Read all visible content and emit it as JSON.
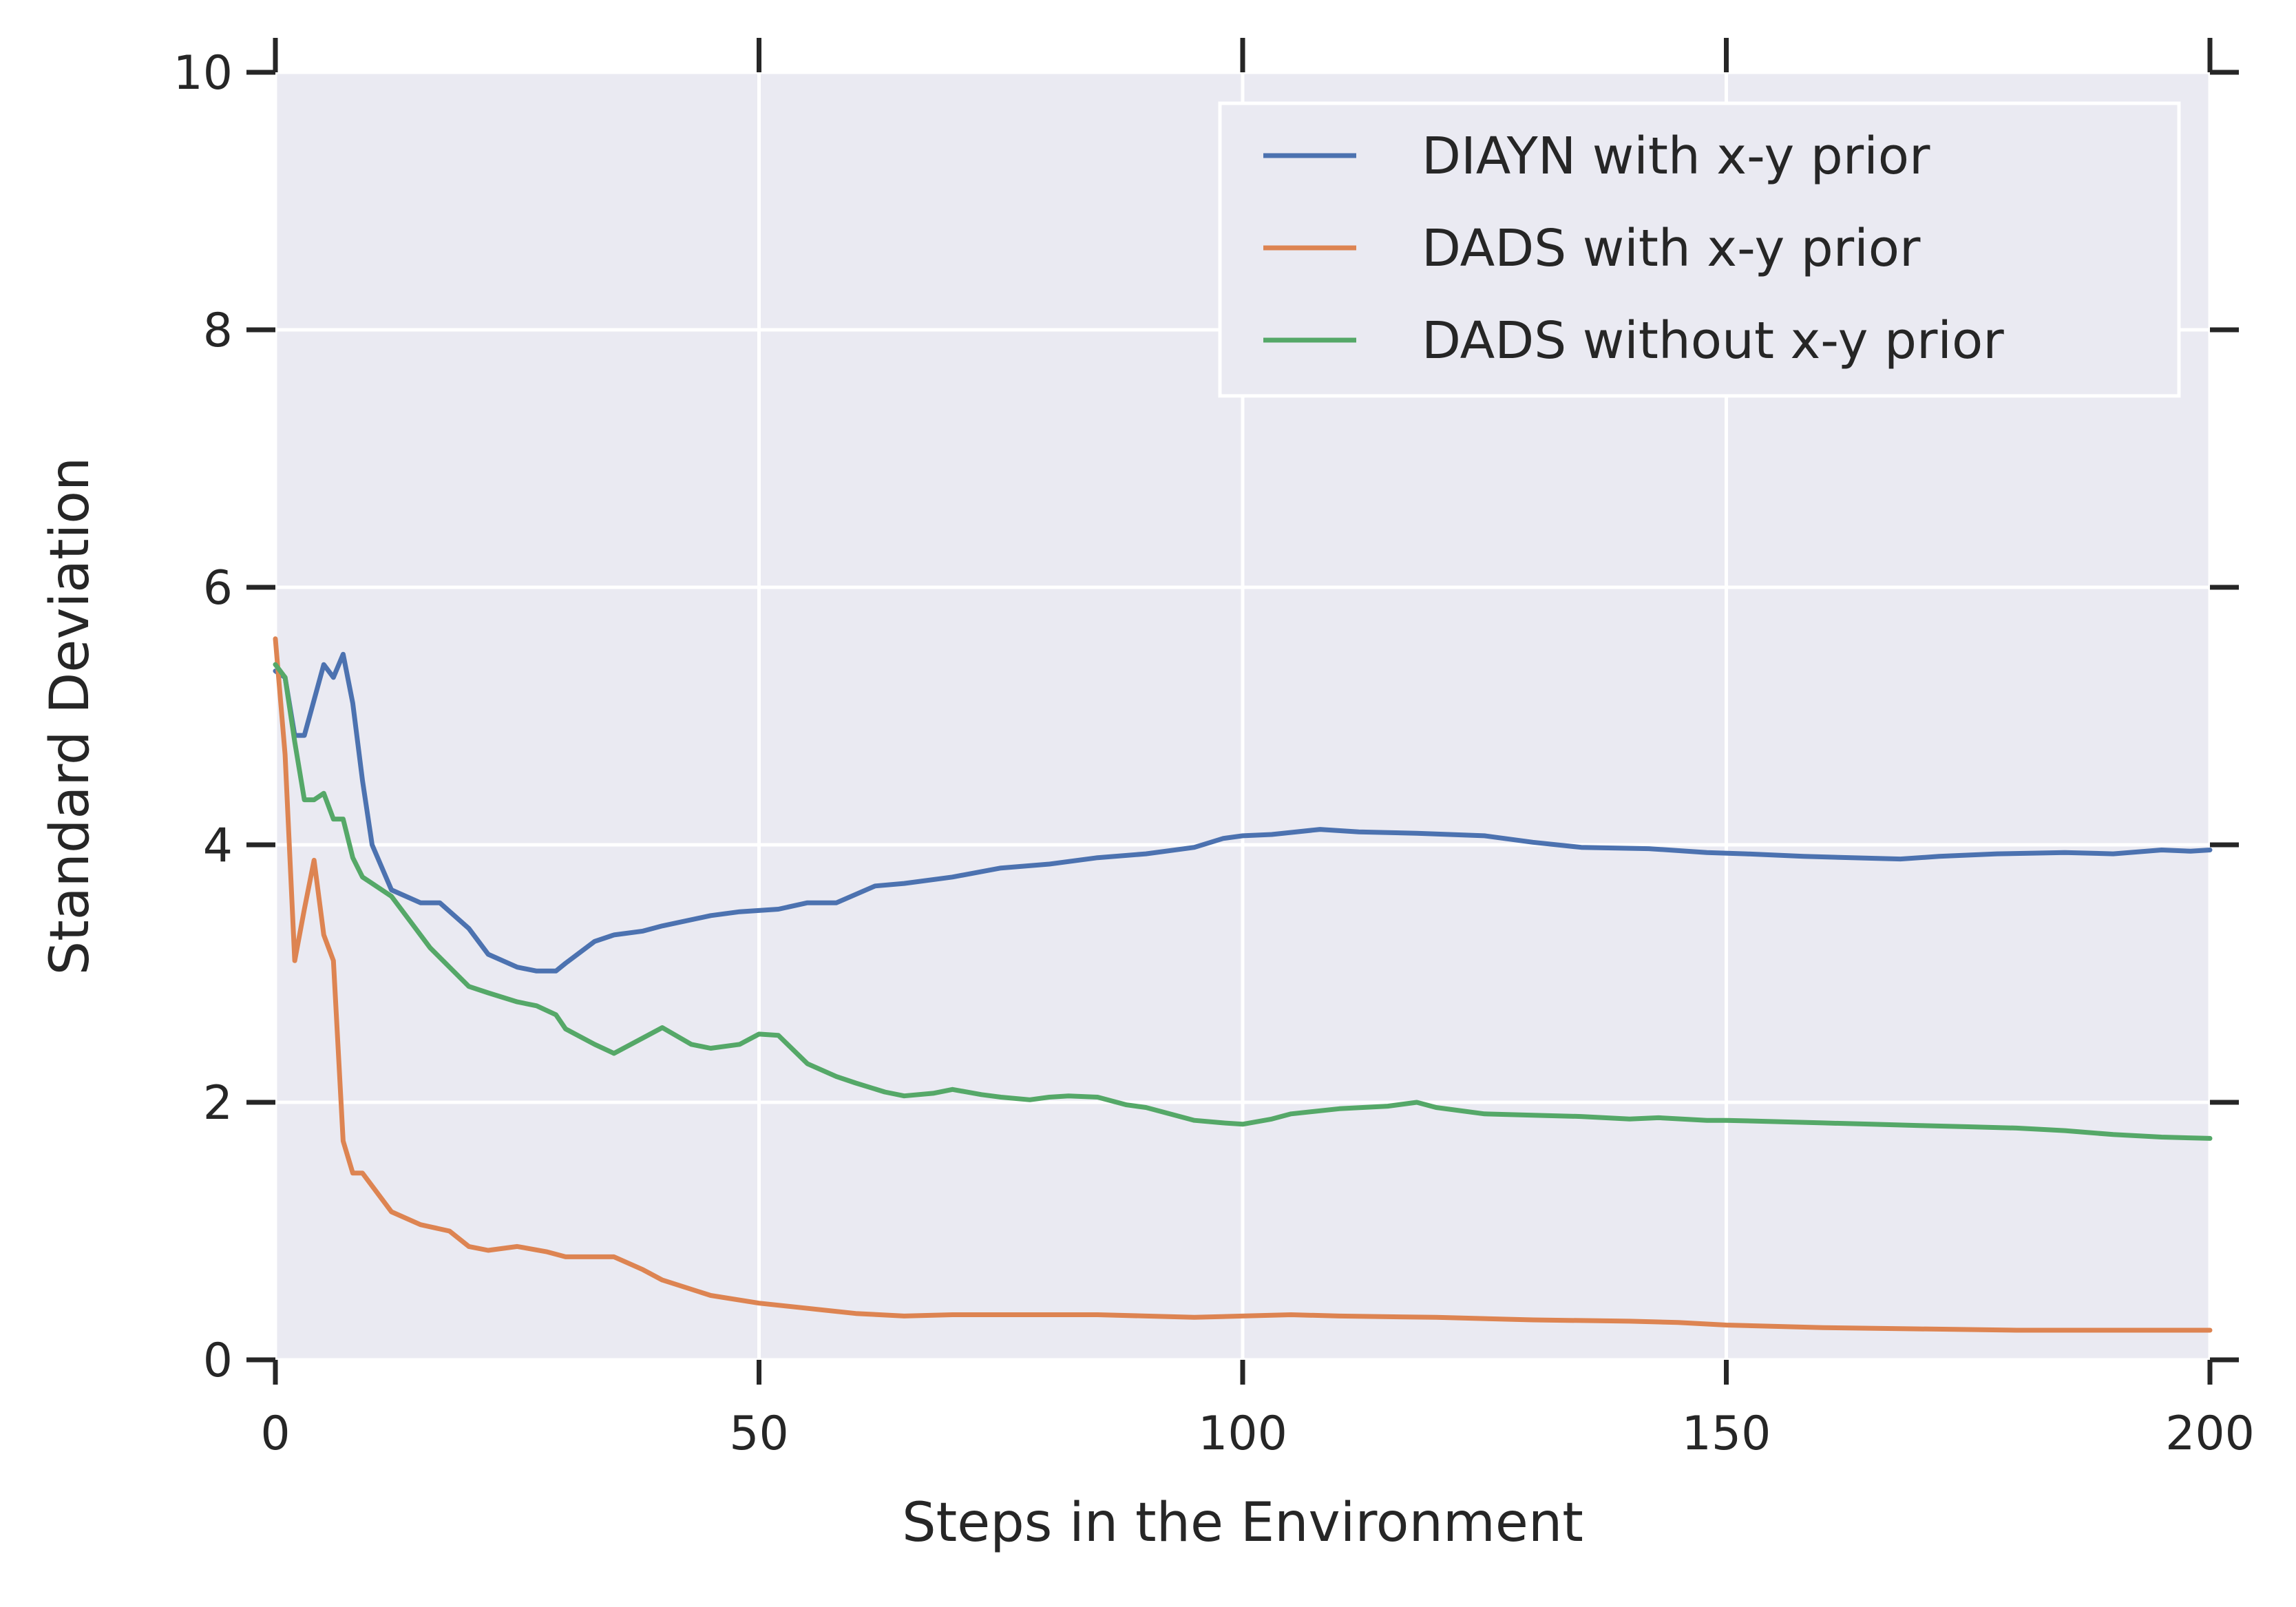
{
  "chart_data": {
    "type": "line",
    "title": "",
    "xlabel": "Steps in the Environment",
    "ylabel": "Standard Deviation",
    "xlim": [
      0,
      200
    ],
    "ylim": [
      0,
      10
    ],
    "xticks": [
      0,
      50,
      100,
      150,
      200
    ],
    "yticks": [
      0,
      2,
      4,
      6,
      8,
      10
    ],
    "xtick_labels": [
      "0",
      "50",
      "100",
      "150",
      "200"
    ],
    "ytick_labels": [
      "0",
      "2",
      "4",
      "6",
      "8",
      "10"
    ],
    "grid": true,
    "legend_position": "top-right",
    "series": [
      {
        "name": "DIAYN with x-y prior",
        "color": "#4C72B0",
        "x": [
          0,
          1,
          2,
          3,
          5,
          6,
          7,
          8,
          9,
          10,
          12,
          15,
          17,
          20,
          22,
          25,
          27,
          29,
          30,
          33,
          35,
          38,
          40,
          45,
          48,
          52,
          55,
          58,
          62,
          65,
          70,
          75,
          80,
          85,
          90,
          95,
          98,
          100,
          103,
          108,
          112,
          118,
          125,
          130,
          135,
          142,
          148,
          152,
          158,
          163,
          168,
          172,
          178,
          185,
          190,
          195,
          198,
          200
        ],
        "y": [
          5.35,
          5.3,
          4.85,
          4.85,
          5.4,
          5.3,
          5.48,
          5.1,
          4.5,
          4.0,
          3.65,
          3.55,
          3.55,
          3.35,
          3.15,
          3.05,
          3.02,
          3.02,
          3.08,
          3.25,
          3.3,
          3.33,
          3.37,
          3.45,
          3.48,
          3.5,
          3.55,
          3.55,
          3.68,
          3.7,
          3.75,
          3.82,
          3.85,
          3.9,
          3.93,
          3.98,
          4.05,
          4.07,
          4.08,
          4.12,
          4.1,
          4.09,
          4.07,
          4.02,
          3.98,
          3.97,
          3.94,
          3.93,
          3.91,
          3.9,
          3.89,
          3.91,
          3.93,
          3.94,
          3.93,
          3.96,
          3.95,
          3.96
        ]
      },
      {
        "name": "DADS with x-y prior",
        "color": "#DD8452",
        "x": [
          0,
          1,
          2,
          3,
          4,
          5,
          6,
          7,
          8,
          9,
          10,
          12,
          15,
          18,
          20,
          22,
          25,
          28,
          30,
          32,
          35,
          38,
          40,
          45,
          50,
          55,
          60,
          65,
          70,
          75,
          80,
          85,
          90,
          95,
          100,
          105,
          110,
          120,
          130,
          140,
          145,
          150,
          155,
          160,
          170,
          180,
          190,
          200
        ],
        "y": [
          5.6,
          4.7,
          3.1,
          3.5,
          3.88,
          3.3,
          3.1,
          1.7,
          1.45,
          1.45,
          1.35,
          1.15,
          1.05,
          1.0,
          0.88,
          0.85,
          0.88,
          0.84,
          0.8,
          0.8,
          0.8,
          0.7,
          0.62,
          0.5,
          0.44,
          0.4,
          0.36,
          0.34,
          0.35,
          0.35,
          0.35,
          0.35,
          0.34,
          0.33,
          0.34,
          0.35,
          0.34,
          0.33,
          0.31,
          0.3,
          0.29,
          0.27,
          0.26,
          0.25,
          0.24,
          0.23,
          0.23,
          0.23
        ]
      },
      {
        "name": "DADS without x-y prior",
        "color": "#55A868",
        "x": [
          0,
          1,
          2,
          3,
          4,
          5,
          6,
          7,
          8,
          9,
          10,
          12,
          14,
          16,
          18,
          20,
          22,
          25,
          27,
          29,
          30,
          33,
          35,
          38,
          40,
          43,
          45,
          48,
          50,
          52,
          55,
          58,
          60,
          63,
          65,
          68,
          70,
          73,
          75,
          78,
          80,
          82,
          85,
          88,
          90,
          93,
          95,
          98,
          100,
          103,
          105,
          110,
          115,
          118,
          120,
          125,
          130,
          135,
          140,
          143,
          148,
          150,
          155,
          160,
          165,
          170,
          175,
          180,
          185,
          190,
          195,
          200
        ],
        "y": [
          5.4,
          5.3,
          4.8,
          4.35,
          4.35,
          4.4,
          4.2,
          4.2,
          3.9,
          3.75,
          3.7,
          3.6,
          3.4,
          3.2,
          3.05,
          2.9,
          2.85,
          2.78,
          2.75,
          2.68,
          2.57,
          2.45,
          2.38,
          2.5,
          2.58,
          2.45,
          2.42,
          2.45,
          2.53,
          2.52,
          2.3,
          2.2,
          2.15,
          2.08,
          2.05,
          2.07,
          2.1,
          2.06,
          2.04,
          2.02,
          2.04,
          2.05,
          2.04,
          1.98,
          1.96,
          1.9,
          1.86,
          1.84,
          1.83,
          1.87,
          1.91,
          1.95,
          1.97,
          2.0,
          1.96,
          1.91,
          1.9,
          1.89,
          1.87,
          1.88,
          1.86,
          1.86,
          1.85,
          1.84,
          1.83,
          1.82,
          1.81,
          1.8,
          1.78,
          1.75,
          1.73,
          1.72
        ]
      }
    ]
  }
}
